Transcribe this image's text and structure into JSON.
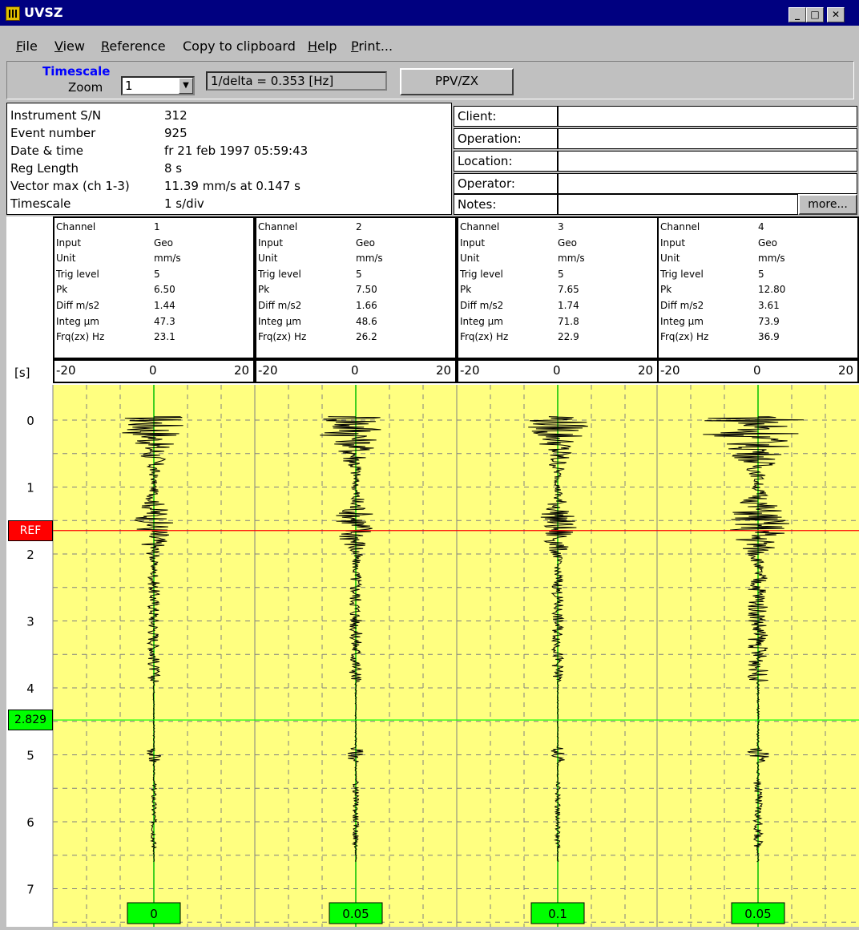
{
  "window": {
    "title": "UVSZ"
  },
  "menu": [
    {
      "label": "File",
      "ul": 0
    },
    {
      "label": "View",
      "ul": 0
    },
    {
      "label": "Reference",
      "ul": 0
    },
    {
      "label": "Copy to clipboard",
      "ul": -1
    },
    {
      "label": "Help",
      "ul": 0
    },
    {
      "label": "Print...",
      "ul": 0
    }
  ],
  "toolbar": {
    "timescale_label": "Timescale",
    "zoom_label": "Zoom",
    "zoom_value": "1",
    "delta_text": "1/delta = 0.353 [Hz]",
    "ppv_button": "PPV/ZX"
  },
  "info": [
    {
      "key": "Instrument S/N",
      "value": "312"
    },
    {
      "key": "Event number",
      "value": "925"
    },
    {
      "key": "Date & time",
      "value": "fr 21 feb 1997 05:59:43"
    },
    {
      "key": "Reg Length",
      "value": "8 s"
    },
    {
      "key": "Vector max (ch 1-3)",
      "value": "11.39 mm/s at 0.147 s"
    },
    {
      "key": "Timescale",
      "value": "1 s/div"
    }
  ],
  "meta": {
    "client": "Client:",
    "operation": "Operation:",
    "location": "Location:",
    "operator": "Operator:",
    "notes": "Notes:",
    "more_button": "more..."
  },
  "channel_labels": [
    "Channel",
    "Input",
    "Unit",
    "Trig level",
    "Pk",
    "Diff m/s2",
    "Integ µm",
    "Frq(zx) Hz"
  ],
  "channels": [
    {
      "values": [
        "1",
        "Geo",
        "mm/s",
        "5",
        "6.50",
        "1.44",
        "47.3",
        "23.1"
      ],
      "bottom": "0"
    },
    {
      "values": [
        "2",
        "Geo",
        "mm/s",
        "5",
        "7.50",
        "1.66",
        "48.6",
        "26.2"
      ],
      "bottom": "0.05"
    },
    {
      "values": [
        "3",
        "Geo",
        "mm/s",
        "5",
        "7.65",
        "1.74",
        "71.8",
        "22.9"
      ],
      "bottom": "0.1"
    },
    {
      "values": [
        "4",
        "Geo",
        "mm/s",
        "5",
        "12.80",
        "3.61",
        "73.9",
        "36.9"
      ],
      "bottom": "0.05"
    }
  ],
  "scale": {
    "min": "-20",
    "mid": "0",
    "max": "20",
    "unit": "[s]"
  },
  "time_labels": [
    "0",
    "1",
    "2",
    "3",
    "4",
    "5",
    "6",
    "7"
  ],
  "ref_marker": {
    "label": "REF",
    "time": 1.65
  },
  "cursor_marker": {
    "label": "2.829",
    "time": 4.48
  },
  "colors": {
    "plot_bg": "#ffff80",
    "ref": "#ff0000",
    "cursor": "#00ff00",
    "axis": "#00c000"
  }
}
